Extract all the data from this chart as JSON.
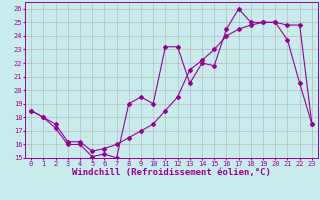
{
  "xlabel": "Windchill (Refroidissement éolien,°C)",
  "background_color": "#c8ecec",
  "grid_color": "#b0b0b0",
  "line_color": "#990099",
  "x_values": [
    0,
    1,
    2,
    3,
    4,
    5,
    6,
    7,
    8,
    9,
    10,
    11,
    12,
    13,
    14,
    15,
    16,
    17,
    18,
    19,
    20,
    21,
    22,
    23
  ],
  "line1_y": [
    18.5,
    18.0,
    17.2,
    16.0,
    16.0,
    15.1,
    15.3,
    15.0,
    19.0,
    19.5,
    19.0,
    23.2,
    23.2,
    20.5,
    22.0,
    21.8,
    24.5,
    26.0,
    25.0,
    25.0,
    25.0,
    23.7,
    20.5,
    17.5
  ],
  "line2_y": [
    18.5,
    18.0,
    17.5,
    16.2,
    16.2,
    15.5,
    15.7,
    16.0,
    16.5,
    17.0,
    17.5,
    18.5,
    19.5,
    21.5,
    22.2,
    23.0,
    24.0,
    24.5,
    24.8,
    25.0,
    25.0,
    24.8,
    24.8,
    17.5
  ],
  "ylim": [
    15,
    26.5
  ],
  "xlim": [
    -0.5,
    23.5
  ],
  "yticks": [
    15,
    16,
    17,
    18,
    19,
    20,
    21,
    22,
    23,
    24,
    25,
    26
  ],
  "xticks": [
    0,
    1,
    2,
    3,
    4,
    5,
    6,
    7,
    8,
    9,
    10,
    11,
    12,
    13,
    14,
    15,
    16,
    17,
    18,
    19,
    20,
    21,
    22,
    23
  ],
  "marker": "D",
  "markersize": 2.0,
  "linewidth": 0.8,
  "tick_fontsize": 5.0,
  "xlabel_fontsize": 6.5
}
